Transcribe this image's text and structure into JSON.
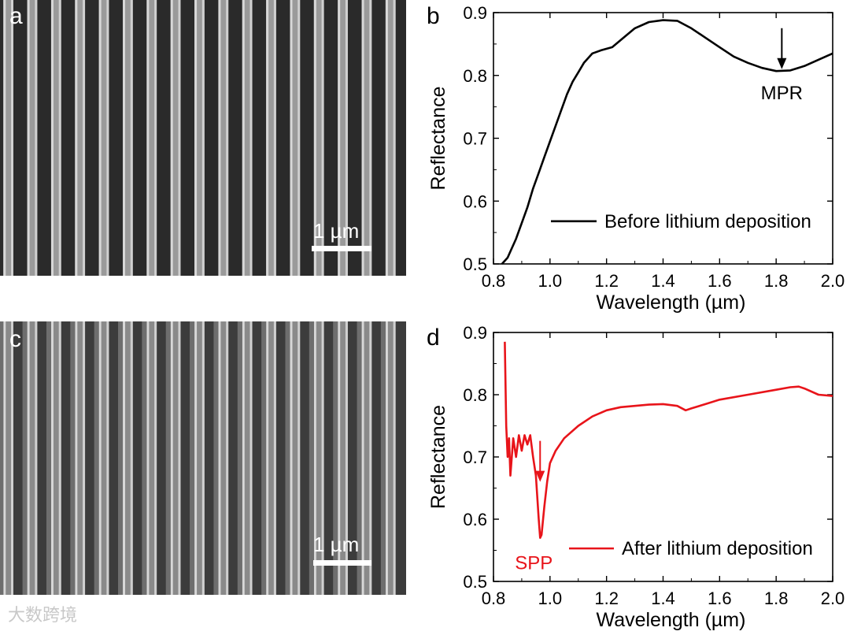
{
  "panels": {
    "a": {
      "letter": "a",
      "scale_label": "1 µm"
    },
    "b": {
      "letter": "b"
    },
    "c": {
      "letter": "c",
      "scale_label": "1 µm"
    },
    "d": {
      "letter": "d"
    }
  },
  "watermark": "大数跨境",
  "chart_data": [
    {
      "panel": "b",
      "type": "line",
      "xlabel": "Wavelength (µm)",
      "ylabel": "Reflectance",
      "xlim": [
        0.8,
        2.0
      ],
      "ylim": [
        0.5,
        0.9
      ],
      "xticks": [
        "0.8",
        "1.0",
        "1.2",
        "1.4",
        "1.6",
        "1.8",
        "2.0"
      ],
      "yticks": [
        "0.5",
        "0.6",
        "0.7",
        "0.8",
        "0.9"
      ],
      "grid": false,
      "legend_position": "middle-right",
      "annotation": {
        "text": "MPR",
        "arrow_at": [
          1.82,
          0.81
        ]
      },
      "series": [
        {
          "name": "Before lithium deposition",
          "color": "#000000",
          "x": [
            0.83,
            0.84,
            0.85,
            0.86,
            0.87,
            0.88,
            0.9,
            0.92,
            0.94,
            0.96,
            0.98,
            1.0,
            1.02,
            1.04,
            1.06,
            1.08,
            1.1,
            1.12,
            1.15,
            1.18,
            1.22,
            1.26,
            1.3,
            1.35,
            1.4,
            1.45,
            1.5,
            1.55,
            1.6,
            1.65,
            1.7,
            1.75,
            1.8,
            1.85,
            1.9,
            1.95,
            2.0
          ],
          "y": [
            0.5,
            0.505,
            0.51,
            0.52,
            0.53,
            0.54,
            0.565,
            0.59,
            0.62,
            0.645,
            0.67,
            0.695,
            0.72,
            0.745,
            0.77,
            0.79,
            0.805,
            0.82,
            0.835,
            0.84,
            0.845,
            0.86,
            0.875,
            0.885,
            0.888,
            0.887,
            0.875,
            0.86,
            0.845,
            0.83,
            0.82,
            0.812,
            0.807,
            0.808,
            0.815,
            0.825,
            0.835
          ]
        }
      ]
    },
    {
      "panel": "d",
      "type": "line",
      "xlabel": "Wavelength (µm)",
      "ylabel": "Reflectance",
      "xlim": [
        0.8,
        2.0
      ],
      "ylim": [
        0.5,
        0.9
      ],
      "xticks": [
        "0.8",
        "1.0",
        "1.2",
        "1.4",
        "1.6",
        "1.8",
        "2.0"
      ],
      "yticks": [
        "0.5",
        "0.6",
        "0.7",
        "0.8",
        "0.9"
      ],
      "grid": false,
      "legend_position": "bottom-right",
      "annotation": {
        "text": "SPP",
        "arrow_at": [
          0.965,
          0.66
        ]
      },
      "series": [
        {
          "name": "After lithium deposition",
          "color": "#e8141a",
          "x": [
            0.84,
            0.845,
            0.85,
            0.855,
            0.86,
            0.87,
            0.88,
            0.89,
            0.9,
            0.91,
            0.92,
            0.93,
            0.94,
            0.95,
            0.96,
            0.965,
            0.97,
            0.98,
            0.99,
            1.0,
            1.02,
            1.05,
            1.1,
            1.15,
            1.2,
            1.25,
            1.3,
            1.35,
            1.4,
            1.45,
            1.48,
            1.5,
            1.55,
            1.6,
            1.7,
            1.8,
            1.85,
            1.88,
            1.9,
            1.95,
            2.0
          ],
          "y": [
            0.885,
            0.75,
            0.7,
            0.73,
            0.67,
            0.73,
            0.7,
            0.735,
            0.71,
            0.735,
            0.72,
            0.735,
            0.7,
            0.67,
            0.6,
            0.57,
            0.575,
            0.62,
            0.66,
            0.69,
            0.71,
            0.73,
            0.75,
            0.765,
            0.775,
            0.78,
            0.782,
            0.784,
            0.785,
            0.782,
            0.775,
            0.778,
            0.785,
            0.792,
            0.8,
            0.808,
            0.812,
            0.813,
            0.81,
            0.8,
            0.798
          ]
        }
      ]
    }
  ]
}
